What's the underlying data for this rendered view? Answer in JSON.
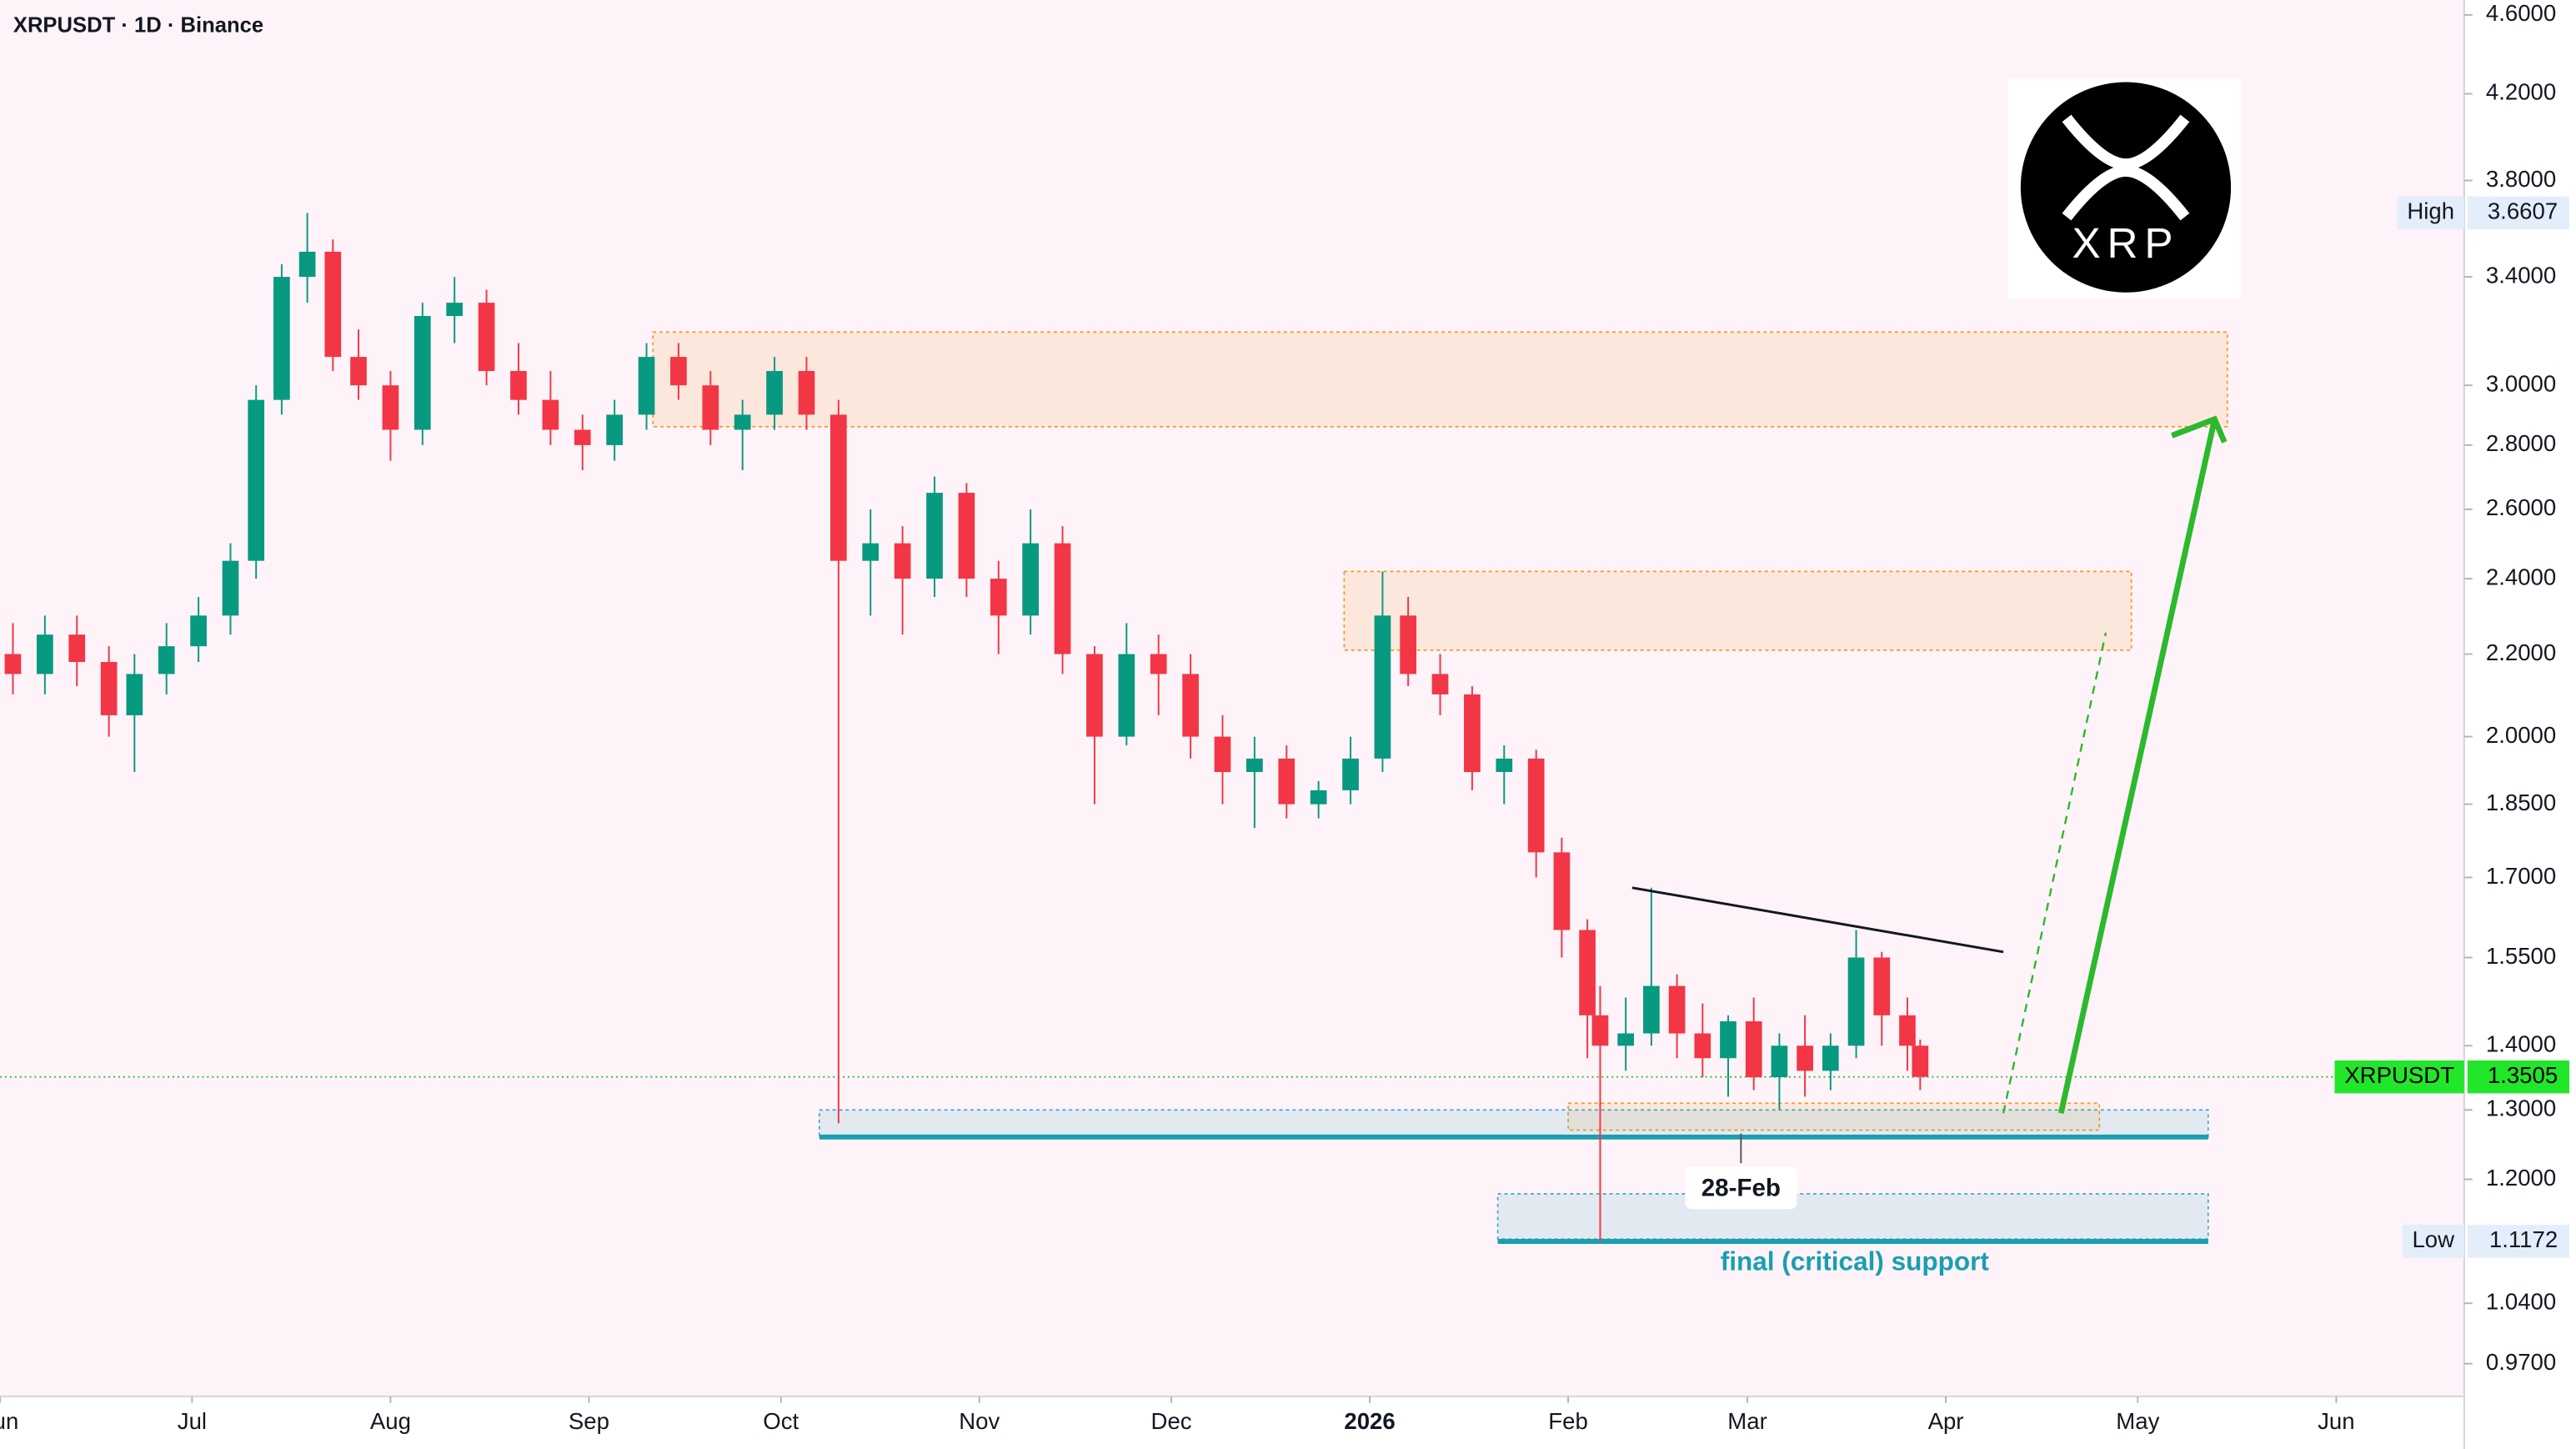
{
  "chart_data": {
    "type": "candlestick",
    "title": "XRPUSDT · 1D · Binance",
    "log_scale": true,
    "ylim": [
      0.934,
      4.68
    ],
    "xlim": [
      0,
      385
    ],
    "yticks": [
      {
        "value": 4.6,
        "label": "4.6000"
      },
      {
        "value": 4.2,
        "label": "4.2000"
      },
      {
        "value": 3.8,
        "label": "3.8000"
      },
      {
        "value": 3.4,
        "label": "3.4000"
      },
      {
        "value": 3.0,
        "label": "3.0000"
      },
      {
        "value": 2.8,
        "label": "2.8000"
      },
      {
        "value": 2.6,
        "label": "2.6000"
      },
      {
        "value": 2.4,
        "label": "2.4000"
      },
      {
        "value": 2.2,
        "label": "2.2000"
      },
      {
        "value": 2.0,
        "label": "2.0000"
      },
      {
        "value": 1.85,
        "label": "1.8500"
      },
      {
        "value": 1.7,
        "label": "1.7000"
      },
      {
        "value": 1.55,
        "label": "1.5500"
      },
      {
        "value": 1.4,
        "label": "1.4000"
      },
      {
        "value": 1.3,
        "label": "1.3000"
      },
      {
        "value": 1.2,
        "label": "1.2000"
      },
      {
        "value": 1.04,
        "label": "1.0400"
      },
      {
        "value": 0.97,
        "label": "0.9700"
      }
    ],
    "xticks": [
      {
        "value": 0,
        "label": "Jun"
      },
      {
        "value": 30,
        "label": "Jul"
      },
      {
        "value": 61,
        "label": "Aug"
      },
      {
        "value": 92,
        "label": "Sep"
      },
      {
        "value": 122,
        "label": "Oct"
      },
      {
        "value": 153,
        "label": "Nov"
      },
      {
        "value": 183,
        "label": "Dec"
      },
      {
        "value": 214,
        "label": "2026"
      },
      {
        "value": 245,
        "label": "Feb"
      },
      {
        "value": 273,
        "label": "Mar"
      },
      {
        "value": 304,
        "label": "Apr"
      },
      {
        "value": 334,
        "label": "May"
      },
      {
        "value": 365,
        "label": "Jun"
      }
    ],
    "up_color": "#089981",
    "down_color": "#f23645",
    "candles": {
      "x": [
        2,
        7,
        12,
        17,
        21,
        26,
        31,
        36,
        40,
        44,
        48,
        52,
        56,
        61,
        66,
        71,
        76,
        81,
        86,
        91,
        96,
        101,
        106,
        111,
        116,
        121,
        126,
        131,
        136,
        141,
        146,
        151,
        156,
        161,
        166,
        171,
        176,
        181,
        186,
        191,
        196,
        201,
        206,
        211,
        216,
        220,
        225,
        230,
        235,
        240,
        244,
        248,
        250,
        254,
        258,
        262,
        266,
        270,
        274,
        278,
        282,
        286,
        290,
        294,
        298,
        300
      ],
      "open": [
        2.2,
        2.15,
        2.25,
        2.18,
        2.05,
        2.15,
        2.22,
        2.3,
        2.45,
        2.95,
        3.4,
        3.5,
        3.1,
        3.0,
        2.85,
        3.25,
        3.3,
        3.05,
        2.95,
        2.85,
        2.8,
        2.9,
        3.1,
        3.0,
        2.85,
        2.9,
        3.05,
        2.9,
        2.45,
        2.5,
        2.4,
        2.65,
        2.4,
        2.3,
        2.5,
        2.2,
        2.0,
        2.2,
        2.15,
        2.0,
        1.92,
        1.95,
        1.85,
        1.88,
        1.95,
        2.3,
        2.15,
        2.1,
        1.92,
        1.95,
        1.75,
        1.6,
        1.45,
        1.4,
        1.42,
        1.5,
        1.42,
        1.38,
        1.44,
        1.35,
        1.4,
        1.36,
        1.4,
        1.55,
        1.45,
        1.4
      ],
      "high": [
        2.28,
        2.3,
        2.3,
        2.22,
        2.2,
        2.28,
        2.35,
        2.5,
        3.0,
        3.45,
        3.66,
        3.55,
        3.2,
        3.05,
        3.3,
        3.4,
        3.35,
        3.15,
        3.05,
        2.9,
        2.95,
        3.15,
        3.15,
        3.05,
        2.95,
        3.1,
        3.1,
        2.95,
        2.6,
        2.55,
        2.7,
        2.68,
        2.45,
        2.6,
        2.55,
        2.22,
        2.28,
        2.25,
        2.2,
        2.05,
        2.0,
        1.98,
        1.9,
        2.0,
        2.42,
        2.35,
        2.2,
        2.12,
        1.98,
        1.97,
        1.78,
        1.62,
        1.5,
        1.48,
        1.68,
        1.52,
        1.47,
        1.45,
        1.48,
        1.42,
        1.45,
        1.42,
        1.6,
        1.56,
        1.48,
        1.41
      ],
      "low": [
        2.1,
        2.1,
        2.12,
        2.0,
        1.92,
        2.1,
        2.18,
        2.25,
        2.4,
        2.9,
        3.3,
        3.05,
        2.95,
        2.75,
        2.8,
        3.15,
        3.0,
        2.9,
        2.8,
        2.72,
        2.75,
        2.85,
        2.95,
        2.8,
        2.72,
        2.85,
        2.85,
        1.28,
        2.3,
        2.25,
        2.35,
        2.35,
        2.2,
        2.25,
        2.15,
        1.85,
        1.98,
        2.05,
        1.95,
        1.85,
        1.8,
        1.82,
        1.82,
        1.85,
        1.92,
        2.12,
        2.05,
        1.88,
        1.85,
        1.7,
        1.55,
        1.38,
        1.117,
        1.36,
        1.4,
        1.38,
        1.35,
        1.32,
        1.33,
        1.3,
        1.32,
        1.33,
        1.38,
        1.4,
        1.36,
        1.33
      ],
      "close": [
        2.15,
        2.25,
        2.18,
        2.05,
        2.15,
        2.22,
        2.3,
        2.45,
        2.95,
        3.4,
        3.5,
        3.1,
        3.0,
        2.85,
        3.25,
        3.3,
        3.05,
        2.95,
        2.85,
        2.8,
        2.9,
        3.1,
        3.0,
        2.85,
        2.9,
        3.05,
        2.9,
        2.45,
        2.5,
        2.4,
        2.65,
        2.4,
        2.3,
        2.5,
        2.2,
        2.0,
        2.2,
        2.15,
        2.0,
        1.92,
        1.95,
        1.85,
        1.88,
        1.95,
        2.3,
        2.15,
        2.1,
        1.92,
        1.95,
        1.75,
        1.6,
        1.45,
        1.4,
        1.42,
        1.5,
        1.42,
        1.38,
        1.44,
        1.35,
        1.4,
        1.36,
        1.4,
        1.55,
        1.45,
        1.4,
        1.3505
      ]
    },
    "zones": [
      {
        "x": [
          102,
          348
        ],
        "y": [
          2.86,
          3.19
        ],
        "color": "#f7931a"
      },
      {
        "x": [
          210,
          333
        ],
        "y": [
          2.21,
          2.42
        ],
        "color": "#f7931a"
      },
      {
        "x": [
          245,
          328
        ],
        "y": [
          1.27,
          1.31
        ],
        "color": "#f7931a"
      },
      {
        "x": [
          128,
          345
        ],
        "y": [
          1.26,
          1.3
        ],
        "color": "#2aa8c8"
      },
      {
        "x": [
          234,
          345
        ],
        "y": [
          1.12,
          1.18
        ],
        "color": "#2aa8c8"
      }
    ],
    "support_lines": [
      {
        "x": [
          128,
          345
        ],
        "y": 1.26,
        "color": "#1a9fb0"
      },
      {
        "x": [
          234,
          345
        ],
        "y": 1.117,
        "color": "#1a9fb0"
      }
    ],
    "trendline": {
      "x": [
        255,
        313
      ],
      "y": [
        1.68,
        1.56
      ]
    },
    "projection": {
      "x": [
        322,
        346
      ],
      "y": [
        1.295,
        2.885
      ],
      "color": "#2db82d"
    },
    "projection_dashed": {
      "x": [
        313,
        329
      ],
      "y": [
        1.295,
        2.255
      ],
      "color": "#2db82d"
    },
    "high": {
      "label": "High",
      "value": 3.6607,
      "value_label": "3.6607"
    },
    "low": {
      "label": "Low",
      "value": 1.1172,
      "value_label": "1.1172"
    },
    "last": {
      "label": "XRPUSDT",
      "value": 1.3505,
      "value_label": "1.3505"
    },
    "date_marker": {
      "x": 272,
      "label": "28-Feb"
    },
    "support_annotation": "final (critical) support",
    "logo_text": "XRP"
  }
}
